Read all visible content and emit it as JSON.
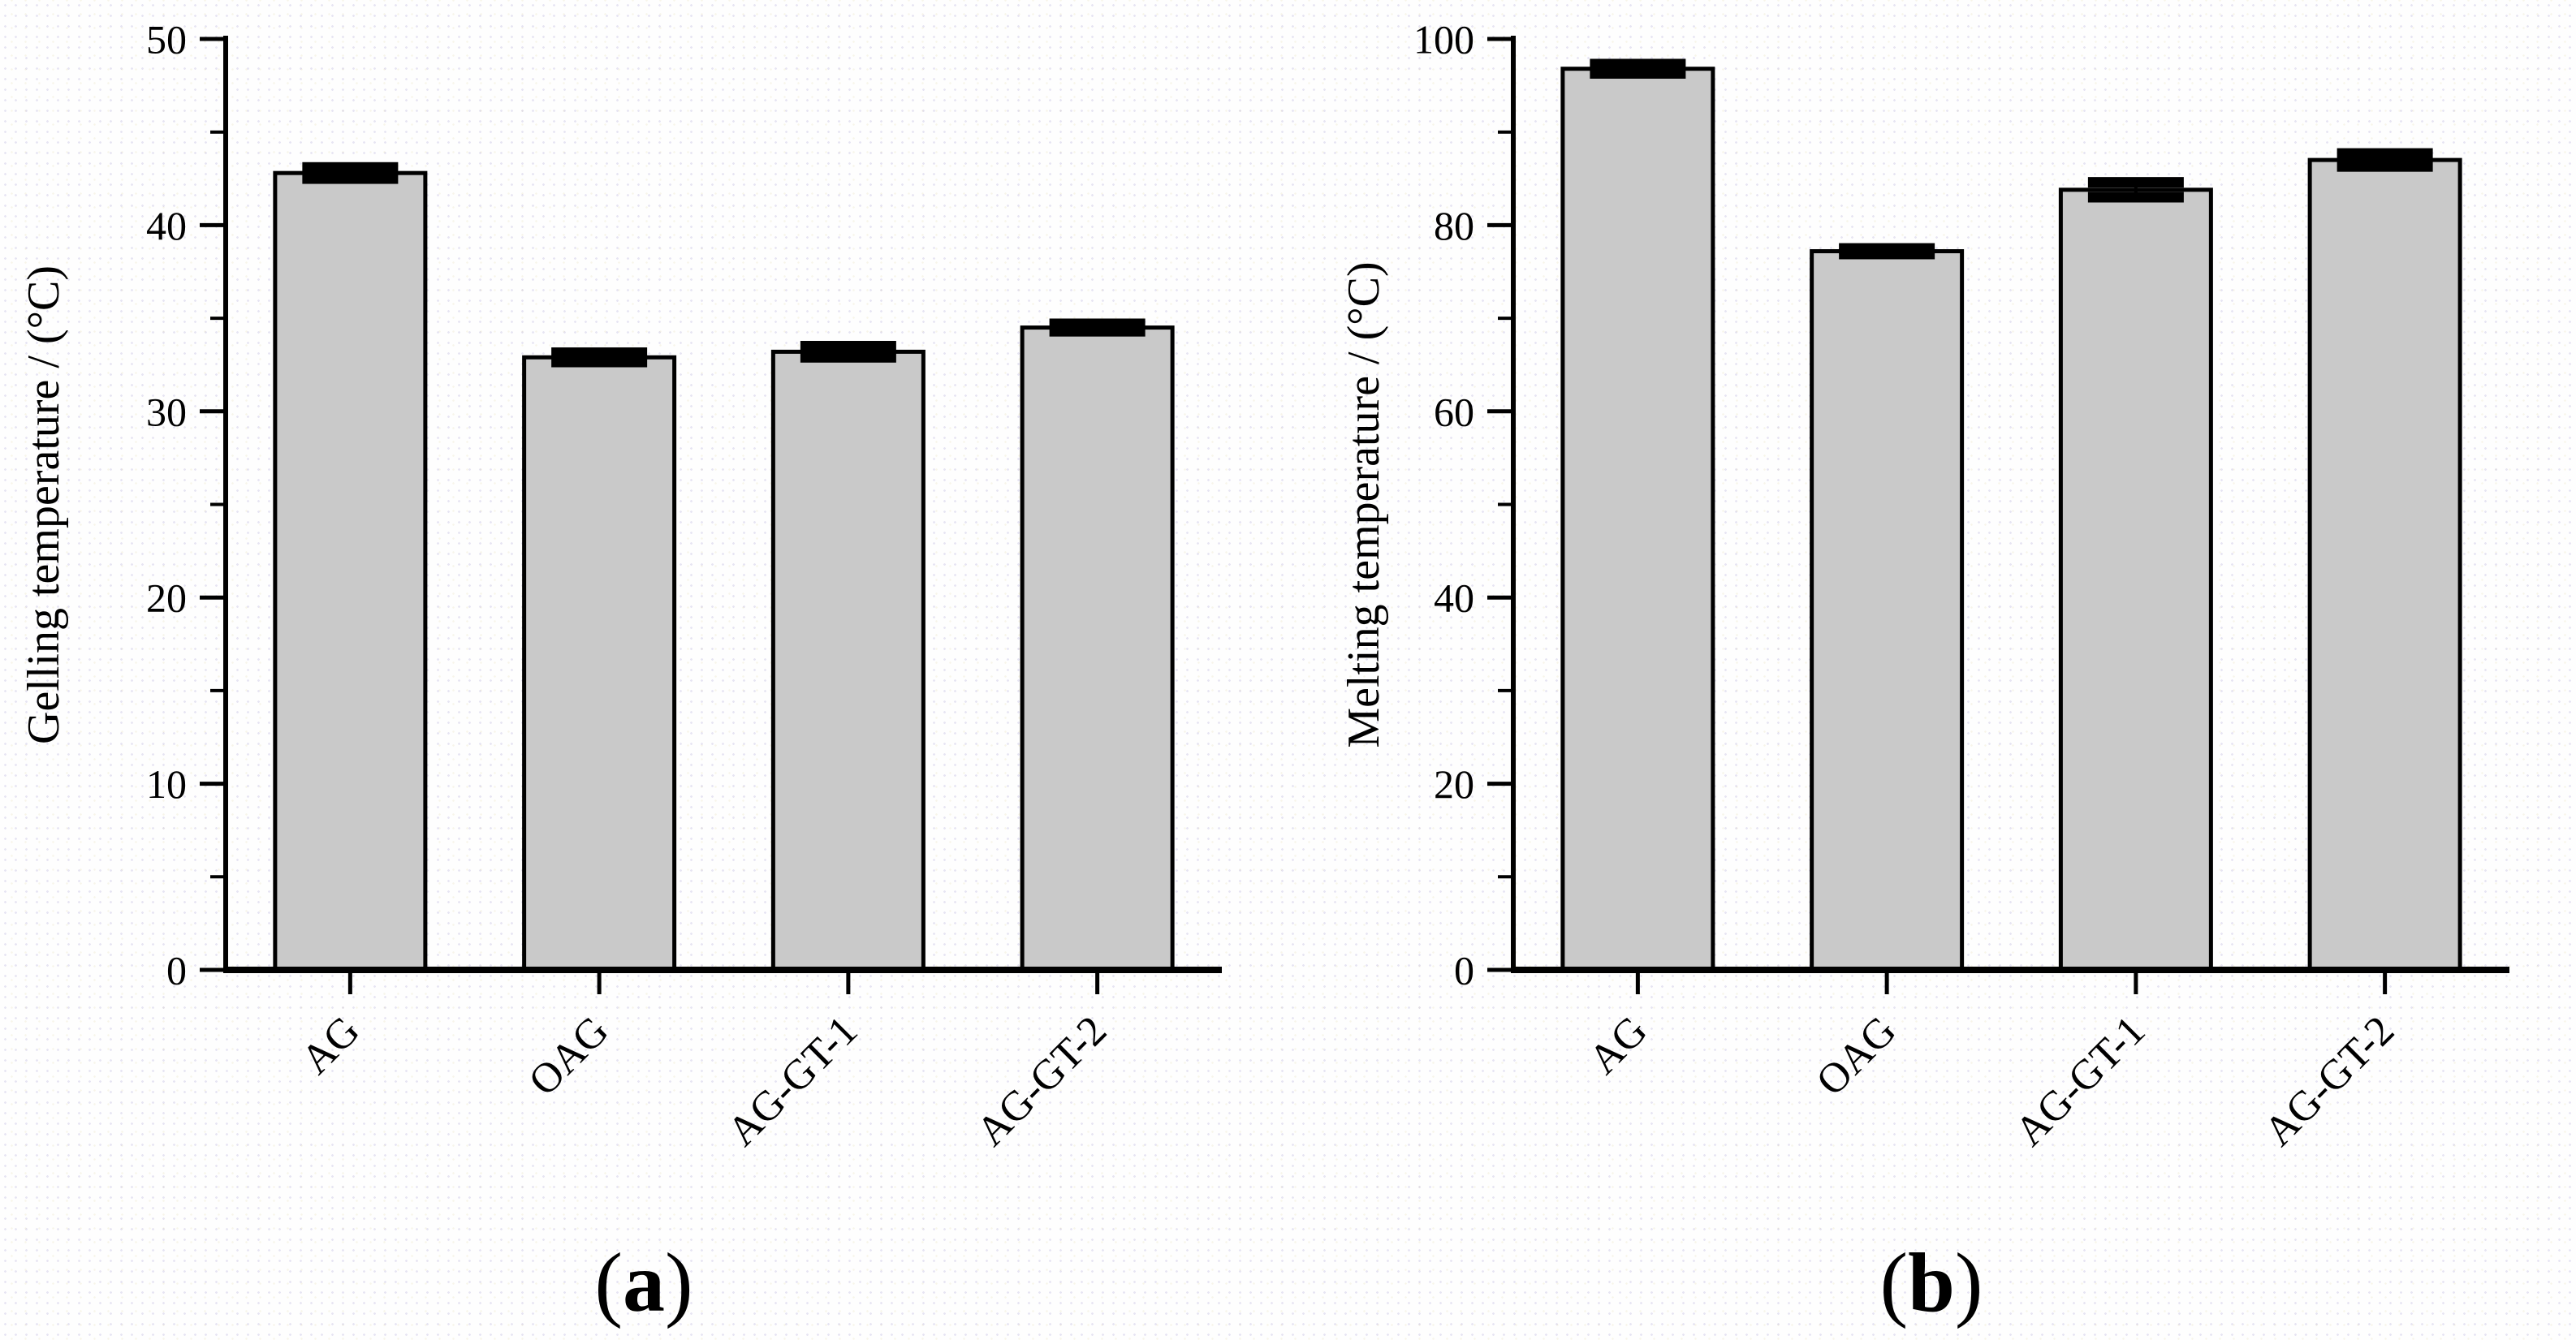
{
  "figure": {
    "description_note": "",
    "bar_fill_color": "#c9c9c9",
    "axis_color": "#000000"
  },
  "chart_data": [
    {
      "type": "bar",
      "panel": "a",
      "caption": {
        "open": "(",
        "letter": "a",
        "close": ")"
      },
      "categories": [
        "AG",
        "OAG",
        "AG-GT-1",
        "AG-GT-2"
      ],
      "values": [
        42.8,
        32.9,
        33.2,
        34.5
      ],
      "errors": [
        0.3,
        0.25,
        0.3,
        0.2
      ],
      "title": "",
      "xlabel": "",
      "ylabel": "Gelling temperature / (°C)",
      "ylim": [
        0,
        50
      ],
      "yticks": [
        0,
        10,
        20,
        30,
        40,
        50
      ],
      "ytick_step": 10,
      "yminor_step": 5,
      "bar_fill": "#c9c9c9",
      "bar_stroke": "#000000",
      "grid": false,
      "legend": "none"
    },
    {
      "type": "bar",
      "panel": "b",
      "caption": {
        "open": "(",
        "letter": "b",
        "close": ")"
      },
      "categories": [
        "AG",
        "OAG",
        "AG-GT-1",
        "AG-GT-2"
      ],
      "values": [
        96.8,
        77.2,
        83.8,
        87.0
      ],
      "errors": [
        0.5,
        0.3,
        0.8,
        0.7
      ],
      "title": "",
      "xlabel": "",
      "ylabel": "Melting temperature / (°C)",
      "ylim": [
        0,
        100
      ],
      "yticks": [
        0,
        20,
        40,
        60,
        80,
        100
      ],
      "ytick_step": 20,
      "yminor_step": 10,
      "bar_fill": "#c9c9c9",
      "bar_stroke": "#000000",
      "grid": false,
      "legend": "none"
    }
  ]
}
